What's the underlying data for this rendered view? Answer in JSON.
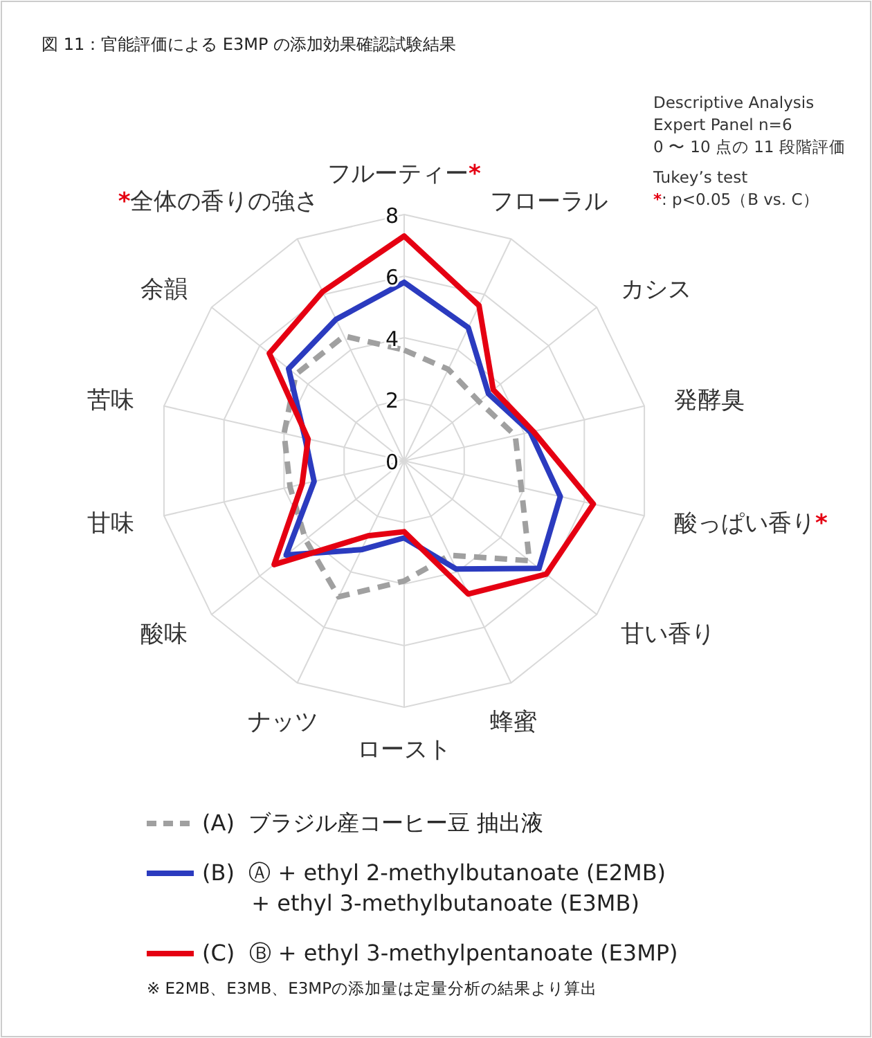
{
  "chart_data": {
    "type": "radar",
    "title": "図 11：官能評価による E3MP の添加効果確認試験結果",
    "annotations": [
      "Descriptive Analysis",
      "Expert Panel n=6",
      "0 〜 10 点の 11 段階評価",
      "Tukey’s test",
      "*: p<0.05（B vs. C）",
      "※ E2MB、E3MB、E3MPの添加量は定量分析の結果より算出"
    ],
    "categories": [
      "フルーティー*",
      "フローラル",
      "カシス",
      "発酵臭",
      "酸っぱい香り*",
      "甘い香り",
      "蜂蜜",
      "ロースト",
      "ナッツ",
      "酸味",
      "甘味",
      "苦味",
      "余韻",
      "*全体の香りの強さ"
    ],
    "ylim": [
      0,
      8
    ],
    "yticks": [
      0,
      2,
      4,
      6,
      8
    ],
    "grid": true,
    "legend": "bottom",
    "series": [
      {
        "name": "(A)  ブラジル産コーヒー豆 抽出液",
        "color": "#a0a0a0",
        "line_style": "dashed",
        "values": [
          3.6,
          3.3,
          3.1,
          3.7,
          3.9,
          5.2,
          3.4,
          3.9,
          4.9,
          4.1,
          3.8,
          4.0,
          4.5,
          4.5
        ]
      },
      {
        "name": "(B)  Ⓐ + ethyl 2-methylbutanoate (E2MB)\n       + ethyl 3-methylbutanoate (E3MB)",
        "color": "#2b3bbf",
        "line_style": "solid",
        "values": [
          5.8,
          4.8,
          3.5,
          4.2,
          5.2,
          5.6,
          3.9,
          2.5,
          3.2,
          4.9,
          3.0,
          3.3,
          4.8,
          5.1
        ]
      },
      {
        "name": "(C)  Ⓑ + ethyl 3-methylpentanoate (E3MP)",
        "color": "#e50012",
        "line_style": "solid",
        "values": [
          7.3,
          5.6,
          3.7,
          4.3,
          6.3,
          5.9,
          4.8,
          2.3,
          2.7,
          5.4,
          3.4,
          3.2,
          5.6,
          6.1
        ]
      }
    ]
  }
}
